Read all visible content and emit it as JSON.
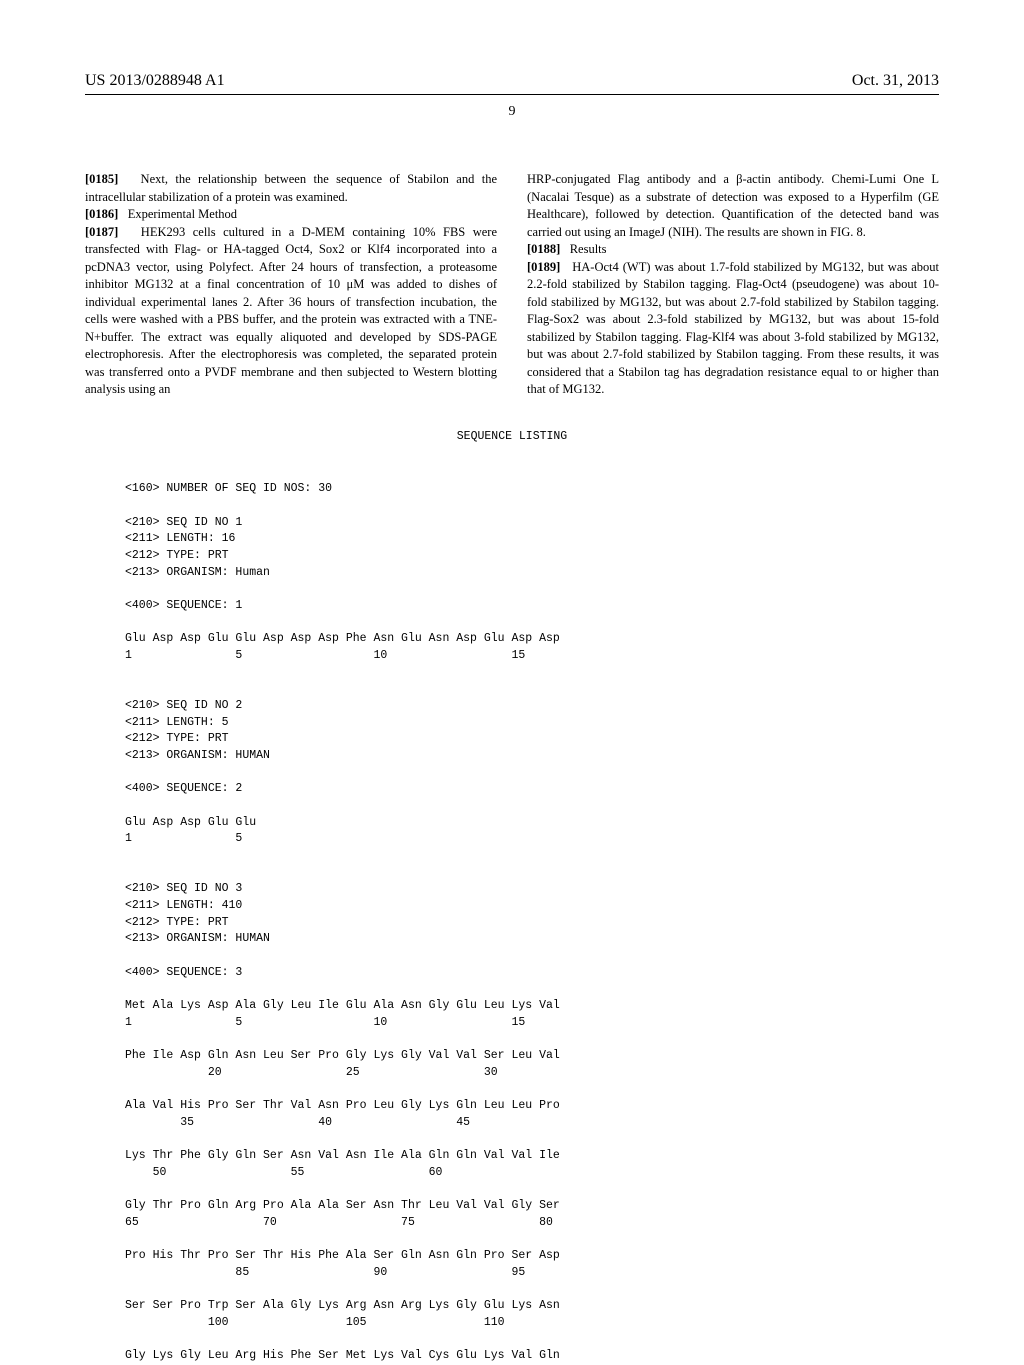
{
  "header": {
    "left": "US 2013/0288948 A1",
    "right": "Oct. 31, 2013"
  },
  "page_number": "9",
  "columns": {
    "left": {
      "p0185": "Next, the relationship between the sequence of Stabilon and the intracellular stabilization of a protein was examined.",
      "p0186": "Experimental Method",
      "p0187": "HEK293 cells cultured in a D-MEM containing 10% FBS were transfected with Flag- or HA-tagged Oct4, Sox2 or Klf4 incorporated into a pcDNA3 vector, using Polyfect. After 24 hours of transfection, a proteasome inhibitor MG132 at a final concentration of 10 μM was added to dishes of individual experimental lanes 2. After 36 hours of transfection incubation, the cells were washed with a PBS buffer, and the protein was extracted with a TNE-N+buffer. The extract was equally aliquoted and developed by SDS-PAGE electrophoresis. After the electrophoresis was completed, the separated protein was transferred onto a PVDF membrane and then subjected to Western blotting analysis using an"
    },
    "right": {
      "p_cont": "HRP-conjugated Flag antibody and a β-actin antibody. Chemi-Lumi One L (Nacalai Tesque) as a substrate of detection was exposed to a Hyperfilm (GE Healthcare), followed by detection. Quantification of the detected band was carried out using an ImageJ (NIH). The results are shown in FIG. 8.",
      "p0188": "Results",
      "p0189": "HA-Oct4 (WT) was about 1.7-fold stabilized by MG132, but was about 2.2-fold stabilized by Stabilon tagging. Flag-Oct4 (pseudogene) was about 10-fold stabilized by MG132, but was about 2.7-fold stabilized by Stabilon tagging. Flag-Sox2 was about 2.3-fold stabilized by MG132, but was about 15-fold stabilized by Stabilon tagging. Flag-Klf4 was about 3-fold stabilized by MG132, but was about 2.7-fold stabilized by Stabilon tagging. From these results, it was considered that a Stabilon tag has degradation resistance equal to or higher than that of MG132."
    }
  },
  "sequence_listing": {
    "title": "SEQUENCE LISTING",
    "num_seqs": "<160> NUMBER OF SEQ ID NOS: 30",
    "seq1": {
      "id": "<210> SEQ ID NO 1",
      "length": "<211> LENGTH: 16",
      "type": "<212> TYPE: PRT",
      "organism": "<213> ORGANISM: Human",
      "seq_marker": "<400> SEQUENCE: 1",
      "line1": "Glu Asp Asp Glu Glu Asp Asp Asp Phe Asn Glu Asn Asp Glu Asp Asp",
      "pos1": "1               5                   10                  15"
    },
    "seq2": {
      "id": "<210> SEQ ID NO 2",
      "length": "<211> LENGTH: 5",
      "type": "<212> TYPE: PRT",
      "organism": "<213> ORGANISM: HUMAN",
      "seq_marker": "<400> SEQUENCE: 2",
      "line1": "Glu Asp Asp Glu Glu",
      "pos1": "1               5"
    },
    "seq3": {
      "id": "<210> SEQ ID NO 3",
      "length": "<211> LENGTH: 410",
      "type": "<212> TYPE: PRT",
      "organism": "<213> ORGANISM: HUMAN",
      "seq_marker": "<400> SEQUENCE: 3",
      "line1": "Met Ala Lys Asp Ala Gly Leu Ile Glu Ala Asn Gly Glu Leu Lys Val",
      "pos1": "1               5                   10                  15",
      "line2": "Phe Ile Asp Gln Asn Leu Ser Pro Gly Lys Gly Val Val Ser Leu Val",
      "pos2": "            20                  25                  30",
      "line3": "Ala Val His Pro Ser Thr Val Asn Pro Leu Gly Lys Gln Leu Leu Pro",
      "pos3": "        35                  40                  45",
      "line4": "Lys Thr Phe Gly Gln Ser Asn Val Asn Ile Ala Gln Gln Val Val Ile",
      "pos4": "    50                  55                  60",
      "line5": "Gly Thr Pro Gln Arg Pro Ala Ala Ser Asn Thr Leu Val Val Gly Ser",
      "pos5": "65                  70                  75                  80",
      "line6": "Pro His Thr Pro Ser Thr His Phe Ala Ser Gln Asn Gln Pro Ser Asp",
      "pos6": "                85                  90                  95",
      "line7": "Ser Ser Pro Trp Ser Ala Gly Lys Arg Asn Arg Lys Gly Glu Lys Asn",
      "pos7": "            100                 105                 110",
      "line8": "Gly Lys Gly Leu Arg His Phe Ser Met Lys Val Cys Glu Lys Val Gln"
    }
  }
}
